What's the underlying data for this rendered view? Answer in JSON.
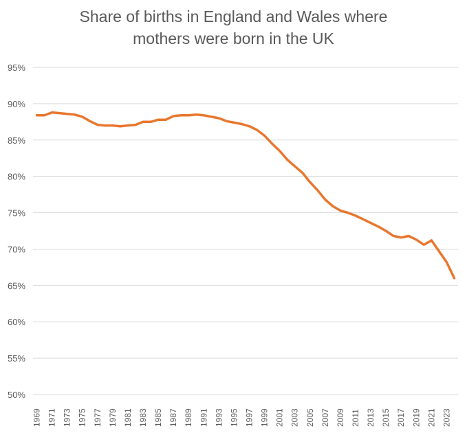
{
  "chart_data": {
    "type": "line",
    "title_lines": [
      "Share of births in England and Wales where",
      "mothers were born in the UK"
    ],
    "xlabel": "",
    "ylabel": "",
    "ylim": [
      50,
      95
    ],
    "y_ticks": [
      "50%",
      "55%",
      "60%",
      "65%",
      "70%",
      "75%",
      "80%",
      "85%",
      "90%",
      "95%"
    ],
    "x_tick_labels": [
      "1969",
      "1971",
      "1973",
      "1975",
      "1977",
      "1979",
      "1981",
      "1983",
      "1985",
      "1987",
      "1989",
      "1991",
      "1993",
      "1995",
      "1997",
      "1999",
      "2001",
      "2003",
      "2005",
      "2007",
      "2009",
      "2011",
      "2013",
      "2015",
      "2017",
      "2019",
      "2021",
      "2023"
    ],
    "grid": true,
    "legend": "none",
    "line_color": "#E8772E",
    "series": [
      {
        "x": [
          1969,
          1970,
          1971,
          1972,
          1973,
          1974,
          1975,
          1976,
          1977,
          1978,
          1979,
          1980,
          1981,
          1982,
          1983,
          1984,
          1985,
          1986,
          1987,
          1988,
          1989,
          1990,
          1991,
          1992,
          1993,
          1994,
          1995,
          1996,
          1997,
          1998,
          1999,
          2000,
          2001,
          2002,
          2003,
          2004,
          2005,
          2006,
          2007,
          2008,
          2009,
          2010,
          2011,
          2012,
          2013,
          2014,
          2015,
          2016,
          2017,
          2018,
          2019,
          2020,
          2021,
          2022,
          2023,
          2024
        ],
        "values": [
          88.4,
          88.4,
          88.8,
          88.7,
          88.6,
          88.5,
          88.2,
          87.6,
          87.1,
          87.0,
          87.0,
          86.9,
          87.0,
          87.1,
          87.5,
          87.5,
          87.8,
          87.8,
          88.3,
          88.4,
          88.4,
          88.5,
          88.4,
          88.2,
          88.0,
          87.6,
          87.4,
          87.2,
          86.9,
          86.4,
          85.6,
          84.5,
          83.5,
          82.3,
          81.4,
          80.5,
          79.2,
          78.1,
          76.8,
          75.9,
          75.3,
          75.0,
          74.6,
          74.1,
          73.6,
          73.1,
          72.5,
          71.8,
          71.6,
          71.8,
          71.3,
          70.6,
          71.2,
          69.7,
          68.2,
          66.0
        ]
      }
    ]
  }
}
